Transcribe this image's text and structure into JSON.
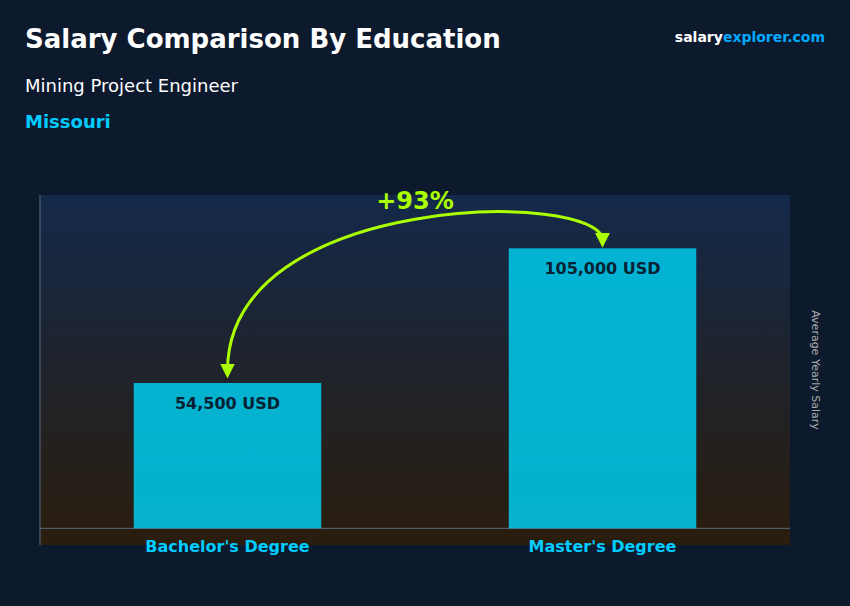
{
  "chart_data": {
    "type": "bar",
    "title": "Salary Comparison By Education",
    "subtitle": "Mining Project Engineer",
    "annotations": [
      "Missouri",
      "salary",
      "explorer.com",
      "+93%"
    ],
    "y_label": "Average Yearly Salary",
    "categories": [
      "Bachelor's Degree",
      "Master's Degree"
    ],
    "values": [
      54500,
      105000
    ],
    "value_labels": [
      "54,500 USD",
      "105,000 USD"
    ],
    "data_labels": true,
    "color": "#00ccee",
    "ylim": [
      -6250,
      125000
    ],
    "tick_labels": "x"
  }
}
